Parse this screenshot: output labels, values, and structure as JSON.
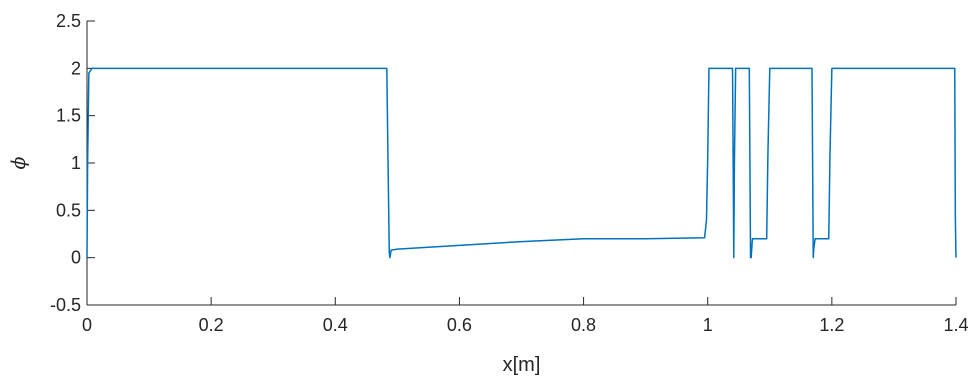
{
  "chart_data": {
    "type": "line",
    "title": "",
    "xlabel": "x[m]",
    "ylabel": "ϕ",
    "xlim": [
      0,
      1.4
    ],
    "ylim": [
      -0.5,
      2.5
    ],
    "xticks": [
      0,
      0.2,
      0.4,
      0.6,
      0.8,
      1,
      1.2,
      1.4
    ],
    "xtick_labels": [
      "0",
      "0.2",
      "0.4",
      "0.6",
      "0.8",
      "1",
      "1.2",
      "1.4"
    ],
    "yticks": [
      -0.5,
      0,
      0.5,
      1,
      1.5,
      2,
      2.5
    ],
    "ytick_labels": [
      "-0.5",
      "0",
      "0.5",
      "1",
      "1.5",
      "2",
      "2.5"
    ],
    "grid": false,
    "legend": "none",
    "line_color": "#0072BD",
    "series": [
      {
        "x": [
          0,
          0.001,
          0.003,
          0.008,
          0.483,
          0.485,
          0.487,
          0.488,
          0.49,
          0.5,
          0.6,
          0.7,
          0.8,
          0.9,
          0.995,
          0.998,
          1.0,
          1.002,
          1.04,
          1.041,
          1.042,
          1.043,
          1.045,
          1.046,
          1.067,
          1.068,
          1.069,
          1.07,
          1.072,
          1.074,
          1.095,
          1.097,
          1.1,
          1.102,
          1.168,
          1.169,
          1.17,
          1.171,
          1.173,
          1.178,
          1.195,
          1.197,
          1.2,
          1.202,
          1.398,
          1.3985,
          1.399,
          1.4
        ],
        "y": [
          0,
          1.0,
          1.95,
          2.0,
          2.0,
          1.0,
          0.05,
          0.0,
          0.08,
          0.09,
          0.13,
          0.17,
          0.2,
          0.2,
          0.21,
          0.4,
          1.05,
          2.0,
          2.0,
          1.0,
          0.0,
          1.0,
          2.0,
          2.0,
          2.0,
          1.0,
          0.0,
          0.0,
          0.2,
          0.2,
          0.2,
          1.1,
          2.0,
          2.0,
          2.0,
          1.0,
          0.0,
          0.1,
          0.2,
          0.2,
          0.2,
          1.1,
          2.0,
          2.0,
          2.0,
          1.1,
          0.4,
          0.0
        ]
      }
    ]
  }
}
